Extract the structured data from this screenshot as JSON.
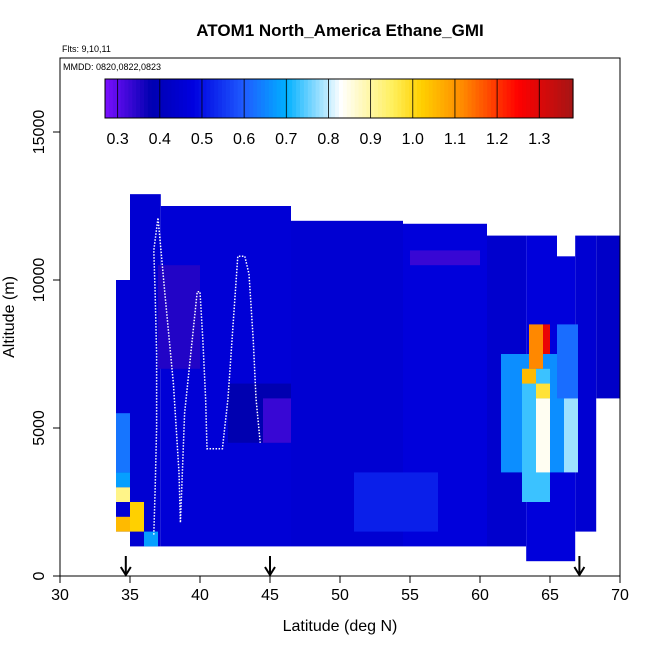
{
  "chart_data": {
    "type": "heatmap",
    "title": "ATOM1 North_America Ethane_GMI",
    "annotations": [
      "Flts: 9,10,11",
      "MMDD: 0820,0822,0823"
    ],
    "xlabel": "Latitude (deg N)",
    "ylabel": "Altitude (m)",
    "xlim": [
      30,
      70
    ],
    "ylim": [
      0,
      17500
    ],
    "x_ticks": [
      "30",
      "35",
      "40",
      "45",
      "50",
      "55",
      "60",
      "65",
      "70"
    ],
    "x_tick_values": [
      30,
      35,
      40,
      45,
      50,
      55,
      60,
      65,
      70
    ],
    "y_ticks": [
      "0",
      "5000",
      "10000",
      "15000"
    ],
    "y_tick_values": [
      0,
      5000,
      10000,
      15000
    ],
    "grid": false,
    "colorbar": {
      "range": [
        0.27,
        1.38
      ],
      "labels": [
        "0.3",
        "0.4",
        "0.5",
        "0.6",
        "0.7",
        "0.8",
        "0.9",
        "1.0",
        "1.1",
        "1.2",
        "1.3"
      ],
      "values": [
        0.3,
        0.4,
        0.5,
        0.6,
        0.7,
        0.8,
        0.9,
        1.0,
        1.1,
        1.2,
        1.3
      ],
      "colors": [
        "#7b0fff",
        "#0000b0",
        "#0000e0",
        "#1f5cff",
        "#00b0ff",
        "#ffffff",
        "#fff060",
        "#ffd000",
        "#ff8800",
        "#ff0000",
        "#a51515"
      ],
      "stops": [
        0.27,
        0.38,
        0.48,
        0.6,
        0.7,
        0.83,
        0.95,
        1.02,
        1.12,
        1.25,
        1.38
      ]
    },
    "arrows_at_latitude": [
      34.7,
      45,
      67.1
    ],
    "regions": [
      {
        "lat": [
          34.0,
          35.0
        ],
        "alt": [
          1500,
          10000
        ],
        "value": 0.46
      },
      {
        "lat": [
          35.0,
          37.2
        ],
        "alt": [
          1000,
          12900
        ],
        "value": 0.45
      },
      {
        "lat": [
          37.2,
          46.5
        ],
        "alt": [
          1000,
          12500
        ],
        "value": 0.46
      },
      {
        "lat": [
          46.5,
          54.5
        ],
        "alt": [
          1000,
          12000
        ],
        "value": 0.45
      },
      {
        "lat": [
          54.5,
          60.5
        ],
        "alt": [
          1000,
          11900
        ],
        "value": 0.47
      },
      {
        "lat": [
          60.5,
          63.3
        ],
        "alt": [
          1000,
          11500
        ],
        "value": 0.44
      },
      {
        "lat": [
          63.3,
          65.5
        ],
        "alt": [
          500,
          11500
        ],
        "value": 0.47
      },
      {
        "lat": [
          65.5,
          66.8
        ],
        "alt": [
          500,
          10800
        ],
        "value": 0.47
      },
      {
        "lat": [
          66.8,
          68.3
        ],
        "alt": [
          1500,
          11500
        ],
        "value": 0.45
      },
      {
        "lat": [
          68.3,
          70.0
        ],
        "alt": [
          6000,
          11500
        ],
        "value": 0.43
      }
    ],
    "cells": [
      {
        "lat": [
          34.0,
          35.0
        ],
        "alt": [
          1500,
          2000
        ],
        "value": 1.05
      },
      {
        "lat": [
          34.0,
          35.0
        ],
        "alt": [
          2500,
          3000
        ],
        "value": 0.92
      },
      {
        "lat": [
          34.0,
          35.0
        ],
        "alt": [
          3000,
          3500
        ],
        "value": 0.68
      },
      {
        "lat": [
          34.0,
          35.0
        ],
        "alt": [
          3500,
          5500
        ],
        "value": 0.63
      },
      {
        "lat": [
          35.0,
          36.0
        ],
        "alt": [
          1500,
          2500
        ],
        "value": 1.02
      },
      {
        "lat": [
          36.0,
          37.0
        ],
        "alt": [
          1000,
          1500
        ],
        "value": 0.68
      },
      {
        "lat": [
          37.0,
          40.0
        ],
        "alt": [
          7000,
          10500
        ],
        "value": 0.35
      },
      {
        "lat": [
          42.0,
          46.5
        ],
        "alt": [
          4500,
          6500
        ],
        "value": 0.38
      },
      {
        "lat": [
          44.5,
          46.5
        ],
        "alt": [
          4500,
          6000
        ],
        "value": 0.33
      },
      {
        "lat": [
          51.0,
          57.0
        ],
        "alt": [
          1500,
          3500
        ],
        "value": 0.52
      },
      {
        "lat": [
          55.0,
          60.0
        ],
        "alt": [
          10500,
          11000
        ],
        "value": 0.33
      },
      {
        "lat": [
          61.5,
          66.0
        ],
        "alt": [
          3500,
          7500
        ],
        "value": 0.66
      },
      {
        "lat": [
          63.0,
          65.0
        ],
        "alt": [
          2500,
          7000
        ],
        "value": 0.73
      },
      {
        "lat": [
          64.0,
          65.0
        ],
        "alt": [
          3500,
          6000
        ],
        "value": 0.84
      },
      {
        "lat": [
          64.0,
          65.0
        ],
        "alt": [
          6000,
          6500
        ],
        "value": 0.98
      },
      {
        "lat": [
          63.0,
          64.0
        ],
        "alt": [
          6500,
          7000
        ],
        "value": 1.05
      },
      {
        "lat": [
          63.5,
          64.5
        ],
        "alt": [
          7000,
          8500
        ],
        "value": 1.12
      },
      {
        "lat": [
          64.5,
          65.0
        ],
        "alt": [
          7500,
          8500
        ],
        "value": 1.28
      },
      {
        "lat": [
          65.5,
          67.0
        ],
        "alt": [
          6000,
          8500
        ],
        "value": 0.62
      },
      {
        "lat": [
          66.0,
          67.0
        ],
        "alt": [
          3500,
          6000
        ],
        "value": 0.78
      }
    ],
    "series": [
      {
        "x": [
          36.7,
          36.8,
          36.9,
          36.9,
          36.8,
          36.7,
          37.0,
          37.5,
          38.1,
          38.5,
          38.6,
          38.7,
          38.9,
          39.8,
          40.0,
          40.2,
          40.4,
          40.5,
          41.6,
          42.0,
          42.7,
          43.0,
          43.2,
          43.5,
          43.8,
          44.0,
          44.2,
          44.3
        ],
        "y": [
          1400,
          3000,
          5000,
          7500,
          9500,
          11000,
          12100,
          9500,
          6500,
          3500,
          1800,
          3000,
          5500,
          9600,
          9600,
          8000,
          6000,
          4300,
          4300,
          6000,
          10800,
          10800,
          10800,
          10200,
          8000,
          6000,
          5000,
          4500
        ]
      }
    ]
  }
}
